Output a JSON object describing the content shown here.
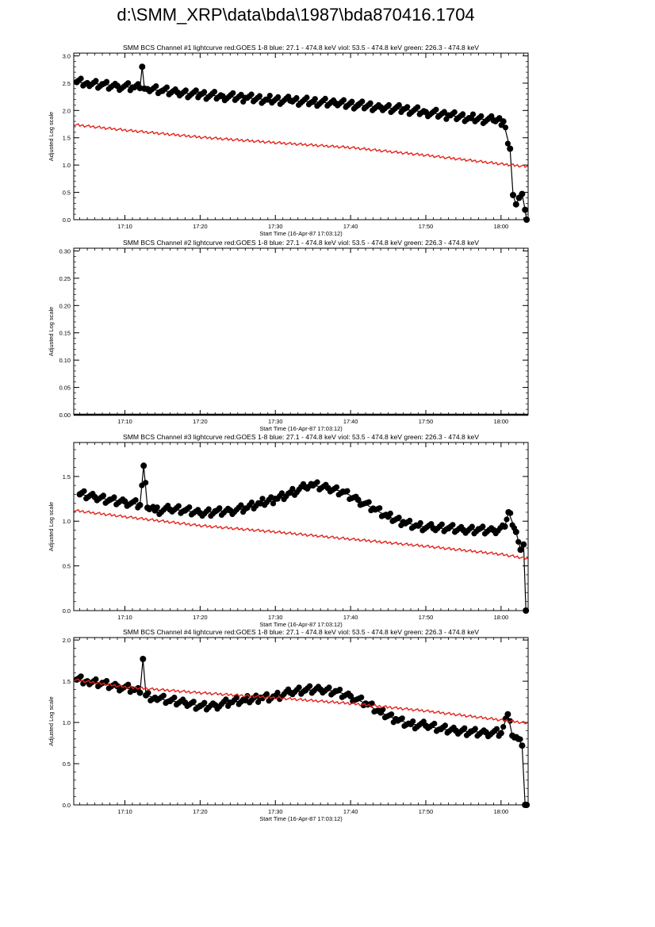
{
  "page": {
    "title": "d:\\SMM_XRP\\data\\bda\\1987\\bda870416.1704"
  },
  "chart_data": [
    {
      "type": "scatter",
      "title": "SMM BCS Channel #1 lightcurve  red:GOES 1-8  blue: 27.1 - 474.8 keV  viol: 53.5 - 474.8 keV  green: 226.3 - 474.8 keV",
      "xlabel": "Start Time (16-Apr-87 17:03:12)",
      "ylabel": "Adjusted Log scale",
      "x_unit": "minutes after 17:00",
      "xlim": [
        3.2,
        63.6
      ],
      "ylim": [
        0.0,
        3.05
      ],
      "xticks": [
        10,
        20,
        30,
        40,
        50,
        60
      ],
      "xtick_labels": [
        "17:10",
        "17:20",
        "17:30",
        "17:40",
        "17:50",
        "18:00"
      ],
      "yticks": [
        0.0,
        0.5,
        1.0,
        1.5,
        2.0,
        2.5,
        3.0
      ],
      "ytick_labels": [
        "0.0",
        "0.5",
        "1.0",
        "1.5",
        "2.0",
        "2.5",
        "3.0"
      ],
      "series": [
        {
          "color": "#000000",
          "marker": "filled-circle",
          "x": [
            3.6,
            5,
            7,
            9,
            11,
            12,
            12.3,
            12.6,
            13,
            15,
            17,
            20,
            23,
            26,
            29,
            32,
            35,
            38,
            41,
            44,
            47,
            50,
            53,
            56,
            59,
            60.3,
            61.2,
            61.6,
            62.0,
            62.4,
            62.8,
            63.2,
            63.4
          ],
          "y": [
            2.52,
            2.5,
            2.48,
            2.45,
            2.42,
            2.41,
            2.8,
            2.4,
            2.39,
            2.36,
            2.33,
            2.29,
            2.26,
            2.23,
            2.2,
            2.18,
            2.16,
            2.13,
            2.1,
            2.06,
            2.02,
            1.97,
            1.91,
            1.86,
            1.82,
            1.8,
            1.3,
            0.45,
            0.28,
            0.4,
            0.47,
            0.18,
            0.0
          ]
        },
        {
          "color": "#e4221b",
          "marker": "line",
          "x": [
            3.2,
            10,
            20,
            30,
            40,
            50,
            60,
            63.6
          ],
          "y": [
            1.74,
            1.64,
            1.51,
            1.41,
            1.32,
            1.18,
            1.02,
            0.97
          ]
        }
      ]
    },
    {
      "type": "scatter",
      "title": "SMM BCS Channel #2 lightcurve  red:GOES 1-8  blue: 27.1 - 474.8 keV  viol: 53.5 - 474.8 keV  green: 226.3 - 474.8 keV",
      "xlabel": "Start Time (16-Apr-87 17:03:12)",
      "ylabel": "Adjusted Log scale",
      "x_unit": "minutes after 17:00",
      "xlim": [
        3.2,
        63.6
      ],
      "ylim": [
        0.0,
        0.305
      ],
      "xticks": [
        10,
        20,
        30,
        40,
        50,
        60
      ],
      "xtick_labels": [
        "17:10",
        "17:20",
        "17:30",
        "17:40",
        "17:50",
        "18:00"
      ],
      "yticks": [
        0.0,
        0.05,
        0.1,
        0.15,
        0.2,
        0.25,
        0.3
      ],
      "ytick_labels": [
        "0.00",
        "0.05",
        "0.10",
        "0.15",
        "0.20",
        "0.25",
        "0.30"
      ],
      "series": [
        {
          "color": "#000000",
          "marker": "line",
          "x": [
            3.2,
            63.6
          ],
          "y": [
            0.0,
            0.0
          ]
        }
      ]
    },
    {
      "type": "scatter",
      "title": "SMM BCS Channel #3 lightcurve  red:GOES 1-8  blue: 27.1 - 474.8 keV  viol: 53.5 - 474.8 keV  green: 226.3 - 474.8 keV",
      "xlabel": "Start Time (16-Apr-87 17:03:12)",
      "ylabel": "Adjusted Log scale",
      "x_unit": "minutes after 17:00",
      "xlim": [
        3.2,
        63.6
      ],
      "ylim": [
        0.0,
        1.88
      ],
      "xticks": [
        10,
        20,
        30,
        40,
        50,
        60
      ],
      "xtick_labels": [
        "17:10",
        "17:20",
        "17:30",
        "17:40",
        "17:50",
        "18:00"
      ],
      "yticks": [
        0.0,
        0.5,
        1.0,
        1.5
      ],
      "ytick_labels": [
        "0.0",
        "0.5",
        "1.0",
        "1.5"
      ],
      "series": [
        {
          "color": "#000000",
          "marker": "filled-circle",
          "x": [
            4,
            6,
            8,
            10,
            12,
            12.5,
            13,
            14,
            16,
            18,
            20,
            22,
            24,
            26,
            28,
            30,
            32,
            34,
            35,
            37,
            39,
            41,
            43,
            45,
            47,
            49,
            51,
            53,
            55,
            57,
            59,
            60.5,
            61,
            62,
            62.6,
            63.0,
            63.3
          ],
          "y": [
            1.3,
            1.27,
            1.24,
            1.22,
            1.18,
            1.62,
            1.15,
            1.12,
            1.13,
            1.12,
            1.09,
            1.11,
            1.12,
            1.14,
            1.2,
            1.25,
            1.32,
            1.38,
            1.4,
            1.37,
            1.33,
            1.24,
            1.14,
            1.05,
            0.99,
            0.95,
            0.92,
            0.92,
            0.9,
            0.91,
            0.9,
            0.94,
            1.1,
            0.88,
            0.68,
            0.74,
            0.0
          ]
        },
        {
          "color": "#e4221b",
          "marker": "line",
          "x": [
            3.2,
            10,
            20,
            30,
            40,
            50,
            60,
            63.6
          ],
          "y": [
            1.12,
            1.05,
            0.95,
            0.88,
            0.8,
            0.72,
            0.63,
            0.58
          ]
        }
      ]
    },
    {
      "type": "scatter",
      "title": "SMM BCS Channel #4 lightcurve  red:GOES 1-8  blue: 27.1 - 474.8 keV  viol: 53.5 - 474.8 keV  green: 226.3 - 474.8 keV",
      "xlabel": "Start Time (16-Apr-87 17:03:12)",
      "ylabel": "Adjusted Log scale",
      "x_unit": "minutes after 17:00",
      "xlim": [
        3.2,
        63.6
      ],
      "ylim": [
        0.0,
        2.03
      ],
      "xticks": [
        10,
        20,
        30,
        40,
        50,
        60
      ],
      "xtick_labels": [
        "17:10",
        "17:20",
        "17:30",
        "17:40",
        "17:50",
        "18:00"
      ],
      "yticks": [
        0.0,
        0.5,
        1.0,
        1.5,
        2.0
      ],
      "ytick_labels": [
        "0.0",
        "0.5",
        "1.0",
        "1.5",
        "2.0"
      ],
      "series": [
        {
          "color": "#000000",
          "marker": "filled-circle",
          "x": [
            3.6,
            5,
            7,
            9,
            11,
            12,
            12.4,
            12.8,
            14,
            16,
            18,
            20,
            22,
            24,
            26,
            28,
            30,
            32,
            34,
            36,
            38,
            40,
            42,
            44,
            46,
            48,
            50,
            52,
            54,
            56,
            58,
            60,
            60.9,
            61.5,
            62.3,
            62.8,
            63.2,
            63.4
          ],
          "y": [
            1.52,
            1.5,
            1.48,
            1.44,
            1.4,
            1.36,
            1.77,
            1.33,
            1.3,
            1.26,
            1.24,
            1.2,
            1.21,
            1.24,
            1.27,
            1.3,
            1.32,
            1.36,
            1.39,
            1.4,
            1.38,
            1.32,
            1.23,
            1.12,
            1.04,
            0.98,
            0.96,
            0.92,
            0.9,
            0.89,
            0.88,
            0.87,
            1.1,
            0.84,
            0.8,
            0.72,
            0.0,
            0.0
          ]
        },
        {
          "color": "#e4221b",
          "marker": "line",
          "x": [
            3.2,
            10,
            20,
            30,
            40,
            50,
            60,
            63.6
          ],
          "y": [
            1.52,
            1.43,
            1.36,
            1.3,
            1.23,
            1.14,
            1.03,
            0.99
          ]
        }
      ]
    }
  ]
}
